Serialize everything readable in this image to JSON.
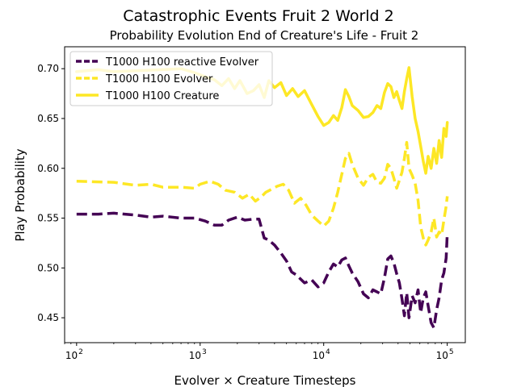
{
  "chart_data": {
    "type": "line",
    "suptitle": "Catastrophic Events Fruit 2 World 2",
    "title": "Probability Evolution End of Creature's Life - Fruit 2",
    "xlabel": "Evolver × Creature Timesteps",
    "ylabel": "Play Probability",
    "xscale": "log",
    "xlim": [
      80,
      140000
    ],
    "ylim": [
      0.425,
      0.722
    ],
    "x_ticks": [
      100,
      1000,
      10000,
      100000
    ],
    "x_tick_labels": [
      "10",
      "10",
      "10",
      "10"
    ],
    "x_tick_exponents": [
      "2",
      "3",
      "4",
      "5"
    ],
    "y_ticks": [
      0.45,
      0.5,
      0.55,
      0.6,
      0.65,
      0.7
    ],
    "y_tick_labels": [
      "0.45",
      "0.50",
      "0.55",
      "0.60",
      "0.65",
      "0.70"
    ],
    "legend_position": "top-left",
    "grid": false,
    "series": [
      {
        "name": "T1000 H100 reactive Evolver",
        "color": "#440154",
        "style": "dashed",
        "points": [
          [
            100,
            0.554
          ],
          [
            150,
            0.554
          ],
          [
            200,
            0.555
          ],
          [
            300,
            0.553
          ],
          [
            400,
            0.551
          ],
          [
            500,
            0.552
          ],
          [
            700,
            0.55
          ],
          [
            900,
            0.55
          ],
          [
            1100,
            0.547
          ],
          [
            1300,
            0.543
          ],
          [
            1500,
            0.543
          ],
          [
            1700,
            0.548
          ],
          [
            2000,
            0.551
          ],
          [
            2300,
            0.548
          ],
          [
            2700,
            0.549
          ],
          [
            3000,
            0.549
          ],
          [
            3300,
            0.53
          ],
          [
            3600,
            0.528
          ],
          [
            4000,
            0.523
          ],
          [
            4500,
            0.515
          ],
          [
            5000,
            0.507
          ],
          [
            5500,
            0.496
          ],
          [
            6000,
            0.493
          ],
          [
            7000,
            0.485
          ],
          [
            8000,
            0.488
          ],
          [
            9000,
            0.481
          ],
          [
            10000,
            0.485
          ],
          [
            11000,
            0.496
          ],
          [
            12000,
            0.504
          ],
          [
            13000,
            0.501
          ],
          [
            14000,
            0.508
          ],
          [
            15000,
            0.51
          ],
          [
            16000,
            0.502
          ],
          [
            17000,
            0.495
          ],
          [
            19000,
            0.486
          ],
          [
            21000,
            0.474
          ],
          [
            23000,
            0.47
          ],
          [
            25000,
            0.478
          ],
          [
            27000,
            0.476
          ],
          [
            29000,
            0.474
          ],
          [
            31000,
            0.49
          ],
          [
            33000,
            0.509
          ],
          [
            35000,
            0.512
          ],
          [
            37000,
            0.505
          ],
          [
            39000,
            0.494
          ],
          [
            41000,
            0.485
          ],
          [
            43000,
            0.469
          ],
          [
            45000,
            0.452
          ],
          [
            47000,
            0.475
          ],
          [
            49000,
            0.45
          ],
          [
            52000,
            0.472
          ],
          [
            55000,
            0.465
          ],
          [
            58000,
            0.478
          ],
          [
            61000,
            0.455
          ],
          [
            64000,
            0.47
          ],
          [
            67000,
            0.476
          ],
          [
            70000,
            0.462
          ],
          [
            74000,
            0.445
          ],
          [
            78000,
            0.44
          ],
          [
            82000,
            0.458
          ],
          [
            86000,
            0.47
          ],
          [
            90000,
            0.488
          ],
          [
            94000,
            0.495
          ],
          [
            98000,
            0.51
          ],
          [
            100000,
            0.535
          ]
        ]
      },
      {
        "name": "T1000 H100 Evolver",
        "color": "#fde725",
        "style": "dashed",
        "points": [
          [
            100,
            0.587
          ],
          [
            200,
            0.586
          ],
          [
            300,
            0.583
          ],
          [
            400,
            0.584
          ],
          [
            500,
            0.581
          ],
          [
            700,
            0.581
          ],
          [
            900,
            0.58
          ],
          [
            1000,
            0.584
          ],
          [
            1200,
            0.587
          ],
          [
            1400,
            0.584
          ],
          [
            1600,
            0.578
          ],
          [
            1900,
            0.576
          ],
          [
            2200,
            0.57
          ],
          [
            2500,
            0.574
          ],
          [
            2800,
            0.567
          ],
          [
            3100,
            0.571
          ],
          [
            3400,
            0.576
          ],
          [
            3800,
            0.579
          ],
          [
            4200,
            0.582
          ],
          [
            4700,
            0.584
          ],
          [
            5200,
            0.578
          ],
          [
            5800,
            0.565
          ],
          [
            6500,
            0.57
          ],
          [
            7200,
            0.563
          ],
          [
            8000,
            0.553
          ],
          [
            9000,
            0.547
          ],
          [
            10000,
            0.542
          ],
          [
            11000,
            0.547
          ],
          [
            12000,
            0.56
          ],
          [
            13000,
            0.576
          ],
          [
            14000,
            0.594
          ],
          [
            15000,
            0.61
          ],
          [
            16000,
            0.615
          ],
          [
            17000,
            0.604
          ],
          [
            19000,
            0.59
          ],
          [
            21000,
            0.583
          ],
          [
            23000,
            0.591
          ],
          [
            25000,
            0.594
          ],
          [
            27000,
            0.586
          ],
          [
            29000,
            0.585
          ],
          [
            31000,
            0.59
          ],
          [
            33000,
            0.604
          ],
          [
            35000,
            0.6
          ],
          [
            37000,
            0.59
          ],
          [
            39000,
            0.58
          ],
          [
            41000,
            0.588
          ],
          [
            43000,
            0.596
          ],
          [
            45000,
            0.61
          ],
          [
            47000,
            0.626
          ],
          [
            49000,
            0.6
          ],
          [
            52000,
            0.593
          ],
          [
            55000,
            0.585
          ],
          [
            58000,
            0.568
          ],
          [
            61000,
            0.541
          ],
          [
            64000,
            0.53
          ],
          [
            67000,
            0.523
          ],
          [
            70000,
            0.528
          ],
          [
            74000,
            0.536
          ],
          [
            78000,
            0.55
          ],
          [
            82000,
            0.531
          ],
          [
            86000,
            0.536
          ],
          [
            90000,
            0.533
          ],
          [
            94000,
            0.548
          ],
          [
            98000,
            0.562
          ],
          [
            100000,
            0.572
          ]
        ]
      },
      {
        "name": "T1000 H100 Creature",
        "color": "#fde725",
        "style": "solid",
        "points": [
          [
            100,
            0.697
          ],
          [
            150,
            0.699
          ],
          [
            200,
            0.697
          ],
          [
            300,
            0.698
          ],
          [
            500,
            0.699
          ],
          [
            700,
            0.7
          ],
          [
            900,
            0.696
          ],
          [
            1100,
            0.692
          ],
          [
            1300,
            0.689
          ],
          [
            1500,
            0.683
          ],
          [
            1700,
            0.69
          ],
          [
            1900,
            0.68
          ],
          [
            2100,
            0.688
          ],
          [
            2400,
            0.675
          ],
          [
            2700,
            0.678
          ],
          [
            3000,
            0.684
          ],
          [
            3300,
            0.671
          ],
          [
            3600,
            0.688
          ],
          [
            4000,
            0.681
          ],
          [
            4500,
            0.686
          ],
          [
            5000,
            0.673
          ],
          [
            5600,
            0.68
          ],
          [
            6200,
            0.672
          ],
          [
            7000,
            0.678
          ],
          [
            8000,
            0.664
          ],
          [
            9000,
            0.652
          ],
          [
            10000,
            0.643
          ],
          [
            11000,
            0.646
          ],
          [
            12000,
            0.653
          ],
          [
            13000,
            0.648
          ],
          [
            14000,
            0.661
          ],
          [
            15000,
            0.679
          ],
          [
            16000,
            0.672
          ],
          [
            17000,
            0.663
          ],
          [
            19000,
            0.658
          ],
          [
            21000,
            0.651
          ],
          [
            23000,
            0.652
          ],
          [
            25000,
            0.656
          ],
          [
            27000,
            0.663
          ],
          [
            29000,
            0.66
          ],
          [
            31000,
            0.676
          ],
          [
            33000,
            0.685
          ],
          [
            35000,
            0.682
          ],
          [
            37000,
            0.671
          ],
          [
            39000,
            0.677
          ],
          [
            41000,
            0.668
          ],
          [
            43000,
            0.66
          ],
          [
            45000,
            0.677
          ],
          [
            47000,
            0.69
          ],
          [
            49000,
            0.701
          ],
          [
            52000,
            0.672
          ],
          [
            55000,
            0.65
          ],
          [
            58000,
            0.637
          ],
          [
            61000,
            0.622
          ],
          [
            64000,
            0.607
          ],
          [
            67000,
            0.595
          ],
          [
            70000,
            0.612
          ],
          [
            74000,
            0.6
          ],
          [
            78000,
            0.62
          ],
          [
            82000,
            0.605
          ],
          [
            86000,
            0.628
          ],
          [
            90000,
            0.611
          ],
          [
            94000,
            0.64
          ],
          [
            98000,
            0.632
          ],
          [
            100000,
            0.646
          ]
        ]
      }
    ]
  }
}
